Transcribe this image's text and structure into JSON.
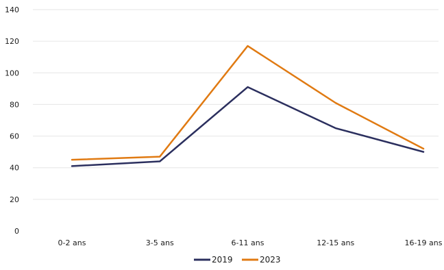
{
  "chart_data": {
    "type": "line",
    "categories": [
      "0-2 ans",
      "3-5 ans",
      "6-11 ans",
      "12-15 ans",
      "16-19 ans"
    ],
    "series": [
      {
        "name": "2019",
        "values": [
          41,
          44,
          91,
          65,
          50
        ],
        "color": "#2b2f5e"
      },
      {
        "name": "2023",
        "values": [
          45,
          47,
          117,
          81,
          52
        ],
        "color": "#e07a12"
      }
    ],
    "ylim": [
      0,
      140
    ],
    "yticks": [
      0,
      20,
      40,
      60,
      80,
      100,
      120,
      140
    ],
    "grid": true,
    "legend_position": "bottom-center",
    "title": "",
    "xlabel": "",
    "ylabel": ""
  }
}
